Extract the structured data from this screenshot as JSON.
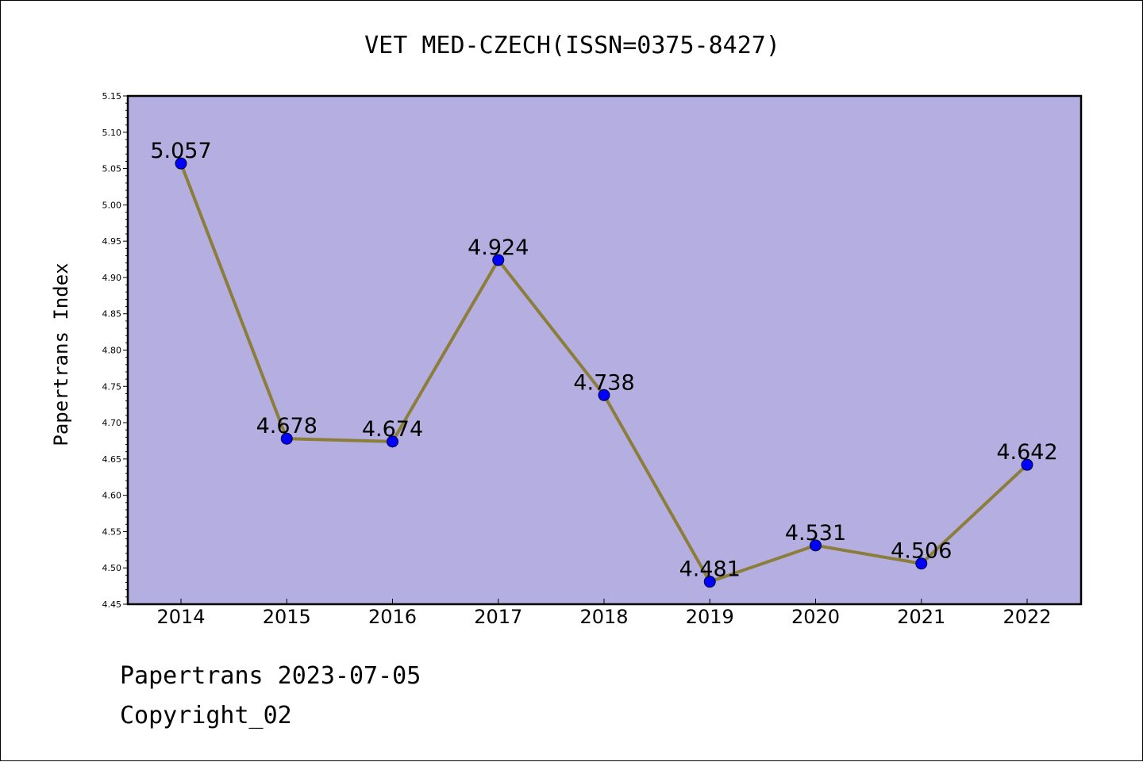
{
  "chart_data": {
    "type": "line",
    "title": "VET MED-CZECH(ISSN=0375-8427)",
    "ylabel": "Papertrans Index",
    "xlabel": "",
    "categories": [
      "2014",
      "2015",
      "2016",
      "2017",
      "2018",
      "2019",
      "2020",
      "2021",
      "2022"
    ],
    "values": [
      5.057,
      4.678,
      4.674,
      4.924,
      4.738,
      4.481,
      4.531,
      4.506,
      4.642
    ],
    "data_labels": [
      "5.057",
      "4.678",
      "4.674",
      "4.924",
      "4.738",
      "4.481",
      "4.531",
      "4.506",
      "4.642"
    ],
    "ylim": [
      4.45,
      5.15
    ],
    "yticks": [
      "4.45",
      "4.50",
      "4.55",
      "4.60",
      "4.65",
      "4.70",
      "4.75",
      "4.80",
      "4.85",
      "4.90",
      "4.95",
      "5.00",
      "5.05",
      "5.10",
      "5.15"
    ],
    "grid": false,
    "legend": "none",
    "colors": {
      "plot_background": "#b4aee1",
      "line": "#8b7d3a",
      "marker": "#0000ff",
      "axis": "#000000"
    }
  },
  "footer": {
    "line1": "Papertrans 2023-07-05",
    "line2": "Copyright_02"
  }
}
